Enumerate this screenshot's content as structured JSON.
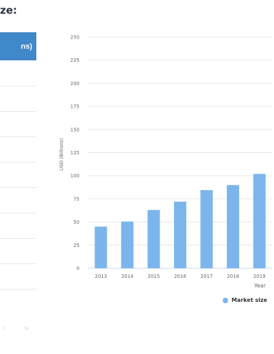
{
  "heading": "ze:",
  "table": {
    "header_fragment": "ns)"
  },
  "pager": {
    "next": "›",
    "last": "»"
  },
  "chart_data": {
    "type": "bar",
    "categories": [
      "2013",
      "2014",
      "2015",
      "2016",
      "2017",
      "2018",
      "2019"
    ],
    "series": [
      {
        "name": "Market size",
        "values": [
          45,
          50.5,
          63,
          72,
          84.5,
          90,
          102
        ]
      }
    ],
    "xlabel": "Year",
    "ylabel": "USD (Billions)",
    "ylim": [
      0,
      250
    ],
    "yticks": [
      0,
      25,
      50,
      75,
      100,
      125,
      150,
      175,
      200,
      225,
      250
    ],
    "grid": true,
    "legend_position": "bottom-right",
    "bar_color": "#7cb5ec",
    "grid_color": "#e6e6e6"
  }
}
